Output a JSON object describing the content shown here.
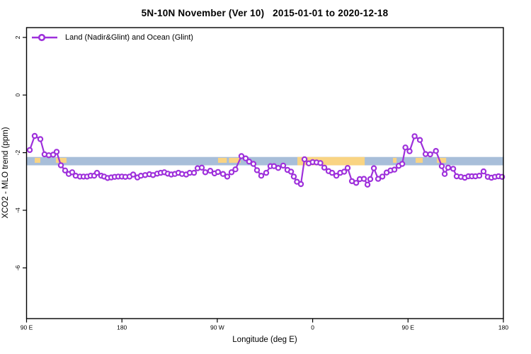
{
  "header": {
    "title": "5N-10N November (Ver 10)   2015-01-01 to 2020-12-18"
  },
  "legend": {
    "label": "Land (Nadir&Glint) and Ocean (Glint)"
  },
  "colors": {
    "series": "#9E30DB",
    "marker_fill": "#FFFFFF",
    "band_blue": "#A8BED9",
    "band_orange": "#F9D483",
    "axis": "#000000"
  },
  "chart_data": {
    "type": "line",
    "title": "5N-10N November (Ver 10)   2015-01-01 to 2020-12-18",
    "xlabel": "Longitude (deg E)",
    "ylabel": "XCO2 - MLO trend (ppm)",
    "grid": false,
    "legend_position": "top-left-inside",
    "x_axis_note": "longitude axis wraps eastward: 90E, 180, 90W, 0, 90E, 180 (stored as continuous 90..540 deg)",
    "xlim": [
      90,
      540
    ],
    "ylim": [
      -7.76,
      2.34
    ],
    "x_ticks": [
      {
        "pos": 90,
        "label": "90 E"
      },
      {
        "pos": 180,
        "label": "180"
      },
      {
        "pos": 270,
        "label": "90 W"
      },
      {
        "pos": 360,
        "label": "0"
      },
      {
        "pos": 450,
        "label": "90 E"
      },
      {
        "pos": 540,
        "label": "180"
      }
    ],
    "y_ticks": [
      {
        "pos": 2,
        "label": "2"
      },
      {
        "pos": 0,
        "label": "0"
      },
      {
        "pos": -2,
        "label": "-2"
      },
      {
        "pos": -4,
        "label": "-4"
      },
      {
        "pos": -6,
        "label": "-6"
      }
    ],
    "bands": [
      {
        "name": "blue-reference-band",
        "color_key": "band_blue",
        "x": [
          90,
          540
        ],
        "y": [
          -2.15,
          -2.44
        ]
      },
      {
        "name": "orange-highlight-band",
        "color_key": "band_orange",
        "x": [
          345.6,
          409.1
        ],
        "y": [
          -2.15,
          -2.44
        ]
      }
    ],
    "orange_dashes": [
      {
        "x": [
          97.7,
          103.0
        ]
      },
      {
        "x": [
          117.7,
          127.7
        ]
      },
      {
        "x": [
          270.7,
          279.0
        ]
      },
      {
        "x": [
          281.0,
          292.0
        ]
      },
      {
        "x": [
          435.8,
          439.2
        ]
      },
      {
        "x": [
          457.2,
          463.9
        ]
      },
      {
        "x": [
          477.3,
          486.0
        ]
      }
    ],
    "series": [
      {
        "name": "Land (Nadir&Glint) and Ocean (Glint)",
        "marker": "open-circle",
        "x": [
          93.0,
          97.7,
          103.0,
          107.0,
          111.0,
          115.1,
          118.4,
          122.4,
          126.4,
          129.8,
          133.1,
          136.4,
          140.4,
          143.8,
          147.1,
          150.5,
          153.8,
          156.5,
          160.5,
          163.2,
          166.5,
          169.9,
          173.2,
          176.5,
          179.9,
          183.2,
          187.2,
          190.6,
          194.6,
          197.9,
          201.9,
          205.9,
          209.3,
          213.3,
          216.6,
          220.0,
          223.3,
          226.6,
          230.0,
          233.3,
          236.7,
          240.7,
          244.0,
          248.0,
          251.4,
          255.4,
          258.7,
          263.4,
          267.4,
          270.7,
          275.4,
          279.4,
          283.4,
          287.1,
          292.8,
          296.8,
          300.1,
          304.1,
          307.5,
          311.5,
          316.2,
          320.2,
          323.5,
          327.5,
          332.2,
          336.2,
          339.6,
          342.2,
          345.2,
          348.9,
          352.3,
          356.3,
          360.0,
          363.7,
          367.3,
          371.0,
          375.0,
          378.4,
          382.4,
          386.0,
          389.7,
          393.0,
          397.1,
          401.1,
          404.4,
          408.4,
          411.8,
          414.4,
          417.8,
          421.8,
          425.8,
          429.8,
          433.5,
          437.2,
          441.2,
          444.5,
          447.5,
          451.5,
          456.2,
          461.2,
          466.6,
          470.9,
          476.3,
          481.9,
          484.6,
          487.9,
          492.6,
          495.9,
          499.9,
          503.6,
          507.0,
          510.3,
          513.6,
          517.3,
          521.3,
          525.3,
          528.7,
          532.0,
          535.4,
          538.7
        ],
        "y": [
          -1.91,
          -1.42,
          -1.53,
          -2.06,
          -2.09,
          -2.07,
          -1.97,
          -2.44,
          -2.62,
          -2.74,
          -2.68,
          -2.8,
          -2.83,
          -2.83,
          -2.83,
          -2.8,
          -2.8,
          -2.7,
          -2.8,
          -2.83,
          -2.88,
          -2.86,
          -2.84,
          -2.83,
          -2.83,
          -2.84,
          -2.83,
          -2.76,
          -2.86,
          -2.8,
          -2.78,
          -2.75,
          -2.78,
          -2.73,
          -2.7,
          -2.68,
          -2.73,
          -2.76,
          -2.74,
          -2.7,
          -2.74,
          -2.76,
          -2.7,
          -2.7,
          -2.54,
          -2.52,
          -2.68,
          -2.63,
          -2.72,
          -2.67,
          -2.74,
          -2.83,
          -2.68,
          -2.58,
          -2.12,
          -2.2,
          -2.31,
          -2.39,
          -2.61,
          -2.8,
          -2.7,
          -2.47,
          -2.47,
          -2.53,
          -2.45,
          -2.6,
          -2.66,
          -2.83,
          -3.01,
          -3.09,
          -2.23,
          -2.37,
          -2.33,
          -2.34,
          -2.36,
          -2.52,
          -2.64,
          -2.7,
          -2.8,
          -2.7,
          -2.66,
          -2.53,
          -2.99,
          -3.05,
          -2.92,
          -2.91,
          -3.11,
          -2.92,
          -2.54,
          -2.91,
          -2.83,
          -2.69,
          -2.62,
          -2.59,
          -2.46,
          -2.39,
          -1.82,
          -1.95,
          -1.43,
          -1.56,
          -2.05,
          -2.06,
          -1.94,
          -2.47,
          -2.74,
          -2.52,
          -2.56,
          -2.82,
          -2.84,
          -2.87,
          -2.82,
          -2.82,
          -2.82,
          -2.8,
          -2.65,
          -2.84,
          -2.87,
          -2.84,
          -2.82,
          -2.84
        ]
      }
    ]
  }
}
